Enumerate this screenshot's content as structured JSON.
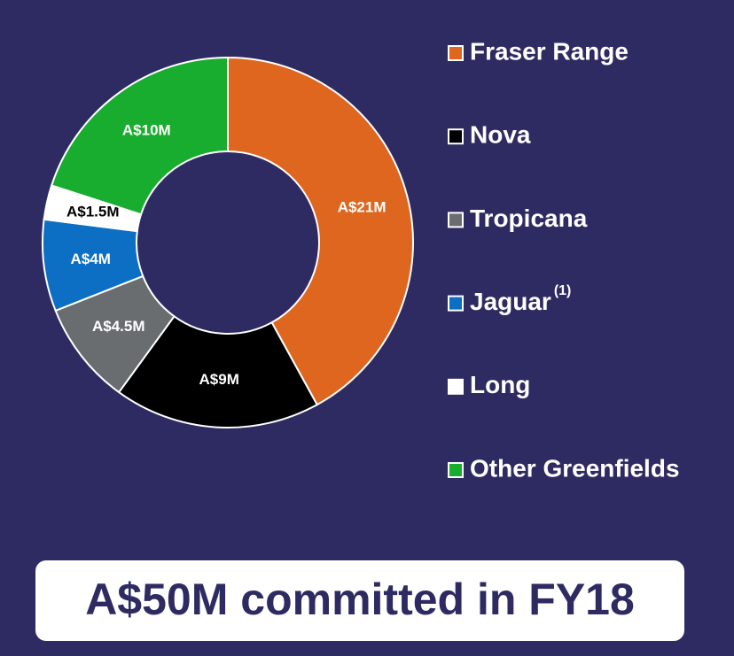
{
  "chart_data": {
    "type": "donut",
    "categories": [
      "Fraser Range",
      "Nova",
      "Tropicana",
      "Jaguar",
      "Long",
      "Other Greenfields"
    ],
    "legend_superscripts": [
      null,
      null,
      null,
      "(1)",
      null,
      null
    ],
    "values": [
      21,
      9,
      4.5,
      4,
      1.5,
      10
    ],
    "value_labels": [
      "A$21M",
      "A$9M",
      "A$4.5M",
      "A$4M",
      "A$1.5M",
      "A$10M"
    ],
    "colors": [
      "#df661f",
      "#000000",
      "#6a6d70",
      "#0d6fc4",
      "#ffffff",
      "#19ad2f"
    ],
    "caption": "A$50M committed in FY18"
  }
}
